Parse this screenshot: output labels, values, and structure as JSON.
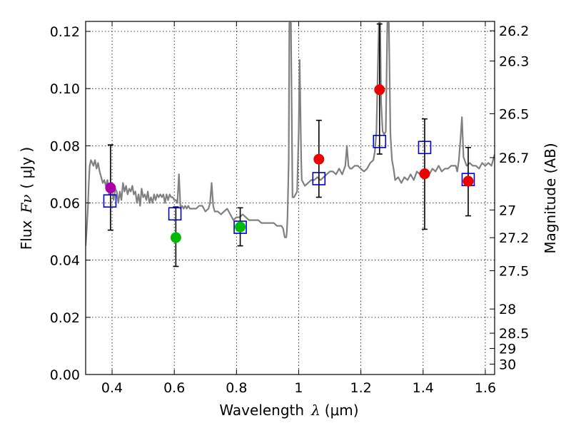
{
  "chart_data": {
    "type": "scatter",
    "xlabel_text": "Wavelength",
    "xlabel_symbol": "λ",
    "xlabel_unit": "(μm)",
    "ylabel_text": "Flux",
    "ylabel_symbol": "Fν",
    "ylabel_unit": "( μJy )",
    "ylabel_right": "Magnitude (AB)",
    "xlim": [
      0.315,
      1.63
    ],
    "ylim": [
      0.0,
      0.1235
    ],
    "grid": true,
    "x_ticks": [
      0.4,
      0.6,
      0.8,
      1.0,
      1.2,
      1.4,
      1.6
    ],
    "x_tick_labels": [
      "0.4",
      "0.6",
      "0.8",
      "1",
      "1.2",
      "1.4",
      "1.6"
    ],
    "y_ticks": [
      0.0,
      0.02,
      0.04,
      0.06,
      0.08,
      0.1,
      0.12
    ],
    "y_tick_labels": [
      "0.00",
      "0.02",
      "0.04",
      "0.06",
      "0.08",
      "0.10",
      "0.12"
    ],
    "mag_ticks": [
      26.2,
      26.3,
      26.5,
      26.7,
      27,
      27.2,
      27.5,
      28,
      28.5,
      29,
      30
    ],
    "mag_tick_labels": [
      "26.2",
      "26.3",
      "26.5",
      "26.7",
      "27",
      "27.2",
      "27.5",
      "28",
      "28.5",
      "29",
      "30"
    ],
    "observed": [
      {
        "x": 0.395,
        "y": 0.0653,
        "err_lo": 0.0148,
        "err_hi": 0.015,
        "color": "#aa00aa"
      },
      {
        "x": 0.605,
        "y": 0.0479,
        "err_lo": 0.0101,
        "err_hi": 0.0107,
        "color": "#00bb00"
      },
      {
        "x": 0.812,
        "y": 0.0516,
        "err_lo": 0.0066,
        "err_hi": 0.0067,
        "color": "#00bb00"
      },
      {
        "x": 1.065,
        "y": 0.0753,
        "err_lo": 0.0133,
        "err_hi": 0.0136,
        "color": "#ee0000"
      },
      {
        "x": 1.26,
        "y": 0.0996,
        "err_lo": 0.0225,
        "err_hi": 0.023,
        "color": "#ee0000"
      },
      {
        "x": 1.405,
        "y": 0.0702,
        "err_lo": 0.0194,
        "err_hi": 0.0192,
        "color": "#ee0000"
      },
      {
        "x": 1.545,
        "y": 0.0676,
        "err_lo": 0.0121,
        "err_hi": 0.0118,
        "color": "#ee0000"
      }
    ],
    "model_photometry": [
      {
        "x": 0.393,
        "y": 0.0607
      },
      {
        "x": 0.602,
        "y": 0.0562
      },
      {
        "x": 0.812,
        "y": 0.0515
      },
      {
        "x": 1.065,
        "y": 0.0685
      },
      {
        "x": 1.26,
        "y": 0.0815
      },
      {
        "x": 1.405,
        "y": 0.0794
      },
      {
        "x": 1.545,
        "y": 0.0682
      }
    ],
    "model_spectrum": {
      "x": [
        0.315,
        0.318,
        0.322,
        0.325,
        0.328,
        0.332,
        0.336,
        0.34,
        0.345,
        0.35,
        0.355,
        0.36,
        0.365,
        0.37,
        0.375,
        0.38,
        0.385,
        0.39,
        0.395,
        0.4,
        0.405,
        0.41,
        0.415,
        0.42,
        0.425,
        0.43,
        0.435,
        0.44,
        0.445,
        0.45,
        0.455,
        0.46,
        0.465,
        0.47,
        0.475,
        0.48,
        0.485,
        0.49,
        0.495,
        0.5,
        0.505,
        0.51,
        0.515,
        0.52,
        0.525,
        0.53,
        0.535,
        0.54,
        0.545,
        0.55,
        0.555,
        0.56,
        0.565,
        0.57,
        0.575,
        0.58,
        0.585,
        0.59,
        0.595,
        0.6,
        0.605,
        0.61,
        0.615,
        0.62,
        0.625,
        0.63,
        0.635,
        0.64,
        0.645,
        0.65,
        0.66,
        0.67,
        0.68,
        0.69,
        0.7,
        0.71,
        0.715,
        0.72,
        0.725,
        0.73,
        0.74,
        0.75,
        0.76,
        0.77,
        0.78,
        0.79,
        0.8,
        0.81,
        0.82,
        0.83,
        0.84,
        0.85,
        0.86,
        0.87,
        0.88,
        0.89,
        0.9,
        0.91,
        0.92,
        0.93,
        0.94,
        0.945,
        0.95,
        0.955,
        0.96,
        0.962,
        0.964,
        0.966,
        0.968,
        0.97,
        0.975,
        0.98,
        0.985,
        0.99,
        0.995,
        1.0,
        1.003,
        1.006,
        1.008,
        1.01,
        1.015,
        1.02,
        1.03,
        1.04,
        1.05,
        1.06,
        1.07,
        1.08,
        1.09,
        1.1,
        1.11,
        1.12,
        1.13,
        1.14,
        1.15,
        1.155,
        1.16,
        1.165,
        1.17,
        1.18,
        1.19,
        1.2,
        1.21,
        1.22,
        1.23,
        1.24,
        1.245,
        1.25,
        1.255,
        1.258,
        1.26,
        1.262,
        1.265,
        1.27,
        1.275,
        1.28,
        1.285,
        1.29,
        1.295,
        1.3,
        1.305,
        1.31,
        1.32,
        1.33,
        1.34,
        1.35,
        1.36,
        1.37,
        1.38,
        1.39,
        1.4,
        1.41,
        1.42,
        1.43,
        1.44,
        1.45,
        1.46,
        1.47,
        1.48,
        1.49,
        1.5,
        1.505,
        1.51,
        1.515,
        1.52,
        1.525,
        1.53,
        1.54,
        1.55,
        1.56,
        1.57,
        1.58,
        1.59,
        1.6,
        1.61,
        1.62,
        1.63
      ],
      "y": [
        0.045,
        0.05,
        0.058,
        0.067,
        0.073,
        0.075,
        0.074,
        0.073,
        0.075,
        0.072,
        0.074,
        0.071,
        0.069,
        0.067,
        0.068,
        0.066,
        0.068,
        0.063,
        0.065,
        0.064,
        0.061,
        0.065,
        0.064,
        0.06,
        0.064,
        0.061,
        0.067,
        0.064,
        0.066,
        0.063,
        0.065,
        0.064,
        0.066,
        0.063,
        0.064,
        0.06,
        0.063,
        0.059,
        0.065,
        0.062,
        0.063,
        0.061,
        0.064,
        0.06,
        0.062,
        0.06,
        0.063,
        0.061,
        0.063,
        0.062,
        0.063,
        0.062,
        0.063,
        0.06,
        0.063,
        0.061,
        0.063,
        0.062,
        0.062,
        0.061,
        0.061,
        0.06,
        0.07,
        0.058,
        0.059,
        0.058,
        0.059,
        0.058,
        0.059,
        0.058,
        0.058,
        0.058,
        0.059,
        0.059,
        0.057,
        0.058,
        0.06,
        0.067,
        0.059,
        0.057,
        0.057,
        0.056,
        0.057,
        0.058,
        0.056,
        0.054,
        0.055,
        0.055,
        0.056,
        0.055,
        0.054,
        0.054,
        0.054,
        0.054,
        0.053,
        0.053,
        0.053,
        0.053,
        0.053,
        0.052,
        0.052,
        0.052,
        0.051,
        0.048,
        0.048,
        0.05,
        0.055,
        0.065,
        0.075,
        0.123,
        0.123,
        0.062,
        0.062,
        0.063,
        0.064,
        0.085,
        0.11,
        0.09,
        0.075,
        0.068,
        0.067,
        0.066,
        0.067,
        0.068,
        0.068,
        0.069,
        0.068,
        0.069,
        0.07,
        0.071,
        0.071,
        0.07,
        0.072,
        0.07,
        0.073,
        0.08,
        0.073,
        0.072,
        0.072,
        0.073,
        0.073,
        0.072,
        0.071,
        0.072,
        0.074,
        0.075,
        0.078,
        0.085,
        0.11,
        0.123,
        0.123,
        0.123,
        0.095,
        0.085,
        0.084,
        0.085,
        0.123,
        0.123,
        0.084,
        0.075,
        0.072,
        0.068,
        0.069,
        0.067,
        0.069,
        0.068,
        0.07,
        0.068,
        0.071,
        0.07,
        0.071,
        0.071,
        0.07,
        0.072,
        0.071,
        0.073,
        0.071,
        0.072,
        0.072,
        0.073,
        0.073,
        0.073,
        0.071,
        0.075,
        0.082,
        0.09,
        0.076,
        0.073,
        0.074,
        0.073,
        0.073,
        0.072,
        0.074,
        0.073,
        0.074,
        0.073,
        0.077
      ]
    }
  }
}
